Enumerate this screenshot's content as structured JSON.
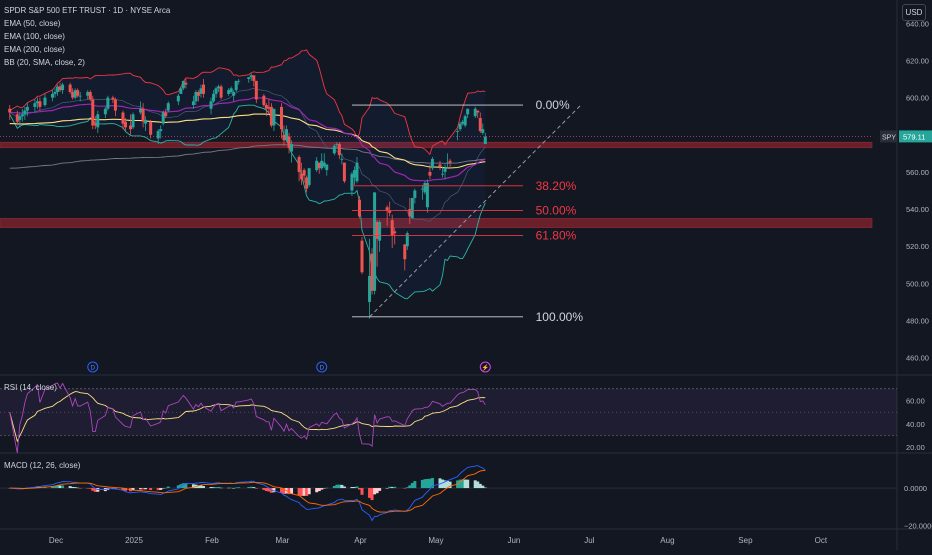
{
  "header": {
    "title": "SPDR S&P 500 ETF TRUST · 1D · NYSE Arca",
    "indicators": [
      "EMA (50, close)",
      "EMA (100, close)",
      "EMA (200, close)",
      "BB (20, SMA, close, 2)"
    ],
    "currency": "USD"
  },
  "price_axis": {
    "ticks": [
      "640.00",
      "620.00",
      "600.00",
      "580.00",
      "560.00",
      "540.00",
      "520.00",
      "500.00",
      "480.00",
      "460.00"
    ],
    "symbol": "SPY",
    "last_price": "579.11"
  },
  "fib_labels": [
    "0.00%",
    "38.20%",
    "50.00%",
    "61.80%",
    "100.00%"
  ],
  "event_markers": [
    "D",
    "D",
    "⚡"
  ],
  "rsi": {
    "label": "RSI (14, close)",
    "ticks": [
      "60.00",
      "40.00",
      "20.00"
    ]
  },
  "macd": {
    "label": "MACD (12, 26, close)",
    "ticks": [
      "0.0000",
      "−20.0000"
    ]
  },
  "time_axis": [
    "Dec",
    "2025",
    "Feb",
    "Mar",
    "Apr",
    "May",
    "Jun",
    "Jul",
    "Aug",
    "Sep",
    "Oct"
  ],
  "colors": {
    "up": "#26a69a",
    "down": "#ef5350",
    "bb": "#f23645",
    "ema50": "#9c27b0",
    "ema100": "#ffe082",
    "ema200": "#787b86",
    "fib": "#f23645",
    "bg": "#131722"
  },
  "chart_data": {
    "type": "candlestick",
    "symbol": "SPY",
    "interval": "1D",
    "ylim": [
      455,
      645
    ],
    "price_levels": [
      {
        "from": 573,
        "to": 576
      },
      {
        "from": 530,
        "to": 535
      }
    ],
    "fibonacci": [
      {
        "ratio": "0.00%",
        "price": 596
      },
      {
        "ratio": "38.20%",
        "price": 552.5
      },
      {
        "ratio": "50.00%",
        "price": 539.2
      },
      {
        "ratio": "61.80%",
        "price": 525.8
      },
      {
        "ratio": "100.00%",
        "price": 482
      }
    ],
    "trendline": {
      "from": {
        "date": "2025-04-07",
        "price": 482
      },
      "to": {
        "date": "2025-06-30",
        "price": 596
      }
    },
    "candles": [
      [
        "2024-11-15",
        594,
        596,
        588,
        592
      ],
      [
        "2024-11-18",
        591,
        593,
        585,
        587
      ],
      [
        "2024-11-19",
        588,
        592,
        584,
        590
      ],
      [
        "2024-11-20",
        590,
        594,
        587,
        591
      ],
      [
        "2024-11-21",
        591,
        595,
        588,
        593
      ],
      [
        "2024-11-22",
        593,
        597,
        590,
        595
      ],
      [
        "2024-11-25",
        595,
        599,
        592,
        597
      ],
      [
        "2024-11-26",
        597,
        600,
        594,
        598
      ],
      [
        "2024-11-27",
        598,
        600,
        593,
        595
      ],
      [
        "2024-11-29",
        596,
        602,
        595,
        600
      ],
      [
        "2024-12-02",
        600,
        604,
        598,
        602
      ],
      [
        "2024-12-03",
        602,
        605,
        600,
        603
      ],
      [
        "2024-12-04",
        603,
        607,
        601,
        606
      ],
      [
        "2024-12-05",
        606,
        608,
        603,
        604
      ],
      [
        "2024-12-06",
        604,
        608,
        602,
        607
      ],
      [
        "2024-12-09",
        607,
        608,
        602,
        603
      ],
      [
        "2024-12-10",
        603,
        605,
        599,
        600
      ],
      [
        "2024-12-11",
        600,
        605,
        599,
        604
      ],
      [
        "2024-12-12",
        604,
        605,
        600,
        601
      ],
      [
        "2024-12-13",
        601,
        603,
        598,
        601
      ],
      [
        "2024-12-16",
        601,
        604,
        599,
        603
      ],
      [
        "2024-12-17",
        603,
        604,
        598,
        599
      ],
      [
        "2024-12-18",
        599,
        601,
        583,
        585
      ],
      [
        "2024-12-19",
        586,
        590,
        583,
        585
      ],
      [
        "2024-12-20",
        584,
        593,
        581,
        591
      ],
      [
        "2024-12-23",
        591,
        595,
        589,
        594
      ],
      [
        "2024-12-24",
        594,
        601,
        593,
        600
      ],
      [
        "2024-12-26",
        600,
        601,
        597,
        599
      ],
      [
        "2024-12-27",
        599,
        600,
        590,
        593
      ],
      [
        "2024-12-30",
        592,
        593,
        583,
        586
      ],
      [
        "2024-12-31",
        587,
        589,
        582,
        584
      ],
      [
        "2025-01-02",
        585,
        591,
        580,
        583
      ],
      [
        "2025-01-03",
        584,
        592,
        583,
        591
      ],
      [
        "2025-01-06",
        592,
        598,
        591,
        594
      ],
      [
        "2025-01-07",
        594,
        597,
        584,
        587
      ],
      [
        "2025-01-08",
        586,
        590,
        582,
        588
      ],
      [
        "2025-01-10",
        587,
        588,
        578,
        580
      ],
      [
        "2025-01-13",
        578,
        583,
        575,
        582
      ],
      [
        "2025-01-14",
        582,
        585,
        578,
        583
      ],
      [
        "2025-01-15",
        586,
        593,
        585,
        592
      ],
      [
        "2025-01-16",
        592,
        594,
        589,
        590
      ],
      [
        "2025-01-17",
        593,
        598,
        592,
        597
      ],
      [
        "2025-01-21",
        598,
        602,
        596,
        601
      ],
      [
        "2025-01-22",
        602,
        606,
        602,
        605
      ],
      [
        "2025-01-23",
        605,
        609,
        604,
        609
      ],
      [
        "2025-01-24",
        608,
        610,
        605,
        607
      ],
      [
        "2025-01-27",
        596,
        601,
        594,
        598
      ],
      [
        "2025-01-28",
        598,
        604,
        596,
        603
      ],
      [
        "2025-01-29",
        603,
        604,
        598,
        601
      ],
      [
        "2025-01-30",
        602,
        607,
        600,
        605
      ],
      [
        "2025-01-31",
        607,
        610,
        600,
        602
      ],
      [
        "2025-02-03",
        594,
        600,
        591,
        598
      ],
      [
        "2025-02-04",
        598,
        604,
        597,
        602
      ],
      [
        "2025-02-05",
        602,
        606,
        600,
        605
      ],
      [
        "2025-02-06",
        605,
        607,
        603,
        606
      ],
      [
        "2025-02-07",
        606,
        607,
        599,
        600
      ],
      [
        "2025-02-10",
        602,
        605,
        601,
        604
      ],
      [
        "2025-02-11",
        603,
        606,
        602,
        605
      ],
      [
        "2025-02-12",
        601,
        604,
        598,
        603
      ],
      [
        "2025-02-13",
        604,
        609,
        603,
        609
      ],
      [
        "2025-02-14",
        609,
        610,
        607,
        609
      ],
      [
        "2025-02-18",
        610,
        611,
        608,
        611
      ],
      [
        "2025-02-19",
        611,
        613,
        609,
        612
      ],
      [
        "2025-02-20",
        612,
        612,
        606,
        609
      ],
      [
        "2025-02-21",
        609,
        609,
        597,
        599
      ],
      [
        "2025-02-24",
        601,
        602,
        595,
        596
      ],
      [
        "2025-02-25",
        596,
        597,
        590,
        594
      ],
      [
        "2025-02-26",
        595,
        599,
        591,
        594
      ],
      [
        "2025-02-27",
        595,
        597,
        584,
        585
      ],
      [
        "2025-02-28",
        585,
        594,
        582,
        594
      ],
      [
        "2025-03-03",
        595,
        597,
        578,
        583
      ],
      [
        "2025-03-04",
        580,
        585,
        574,
        577
      ],
      [
        "2025-03-05",
        577,
        585,
        576,
        583
      ],
      [
        "2025-03-06",
        579,
        581,
        570,
        573
      ],
      [
        "2025-03-07",
        571,
        577,
        565,
        575
      ],
      [
        "2025-03-10",
        568,
        569,
        555,
        560
      ],
      [
        "2025-03-11",
        559,
        565,
        553,
        556
      ],
      [
        "2025-03-12",
        561,
        562,
        554,
        558
      ],
      [
        "2025-03-13",
        557,
        558,
        549,
        551
      ],
      [
        "2025-03-14",
        553,
        562,
        552,
        562
      ],
      [
        "2025-03-17",
        561,
        568,
        560,
        566
      ],
      [
        "2025-03-18",
        565,
        565,
        559,
        562
      ],
      [
        "2025-03-19",
        562,
        570,
        561,
        566
      ],
      [
        "2025-03-20",
        563,
        570,
        562,
        565
      ],
      [
        "2025-03-21",
        561,
        564,
        558,
        564
      ],
      [
        "2025-03-24",
        570,
        575,
        569,
        574
      ],
      [
        "2025-03-25",
        575,
        576,
        573,
        575
      ],
      [
        "2025-03-26",
        575,
        576,
        567,
        569
      ],
      [
        "2025-03-27",
        567,
        570,
        564,
        567
      ],
      [
        "2025-03-28",
        565,
        565,
        554,
        555
      ],
      [
        "2025-03-31",
        550,
        560,
        547,
        559
      ],
      [
        "2025-04-01",
        557,
        563,
        553,
        561
      ],
      [
        "2025-04-02",
        555,
        568,
        554,
        565
      ],
      [
        "2025-04-03",
        545,
        547,
        535,
        536
      ],
      [
        "2025-04-04",
        523,
        525,
        505,
        506
      ],
      [
        "2025-04-07",
        490,
        524,
        481,
        504
      ],
      [
        "2025-04-08",
        516,
        519,
        494,
        496
      ],
      [
        "2025-04-09",
        496,
        549,
        494,
        549
      ],
      [
        "2025-04-10",
        533,
        534,
        509,
        524
      ],
      [
        "2025-04-11",
        523,
        534,
        517,
        533
      ],
      [
        "2025-04-14",
        541,
        542,
        531,
        539
      ],
      [
        "2025-04-15",
        539,
        544,
        536,
        538
      ],
      [
        "2025-04-16",
        534,
        537,
        519,
        526
      ],
      [
        "2025-04-17",
        528,
        530,
        521,
        527
      ],
      [
        "2025-04-21",
        521,
        521,
        507,
        513
      ],
      [
        "2025-04-22",
        520,
        528,
        518,
        527
      ],
      [
        "2025-04-23",
        540,
        546,
        532,
        536
      ],
      [
        "2025-04-24",
        535,
        546,
        535,
        546
      ],
      [
        "2025-04-25",
        546,
        551,
        543,
        550
      ],
      [
        "2025-04-28",
        551,
        553,
        545,
        551
      ],
      [
        "2025-04-29",
        549,
        555,
        548,
        554
      ],
      [
        "2025-04-30",
        541,
        556,
        538,
        554
      ],
      [
        "2025-05-01",
        560,
        564,
        556,
        558
      ],
      [
        "2025-05-02",
        562,
        568,
        561,
        567
      ],
      [
        "2025-05-05",
        564,
        566,
        561,
        563
      ],
      [
        "2025-05-06",
        559,
        563,
        557,
        559
      ],
      [
        "2025-05-07",
        560,
        564,
        556,
        562
      ],
      [
        "2025-05-08",
        565,
        570,
        562,
        565
      ],
      [
        "2025-05-09",
        566,
        567,
        562,
        565
      ],
      [
        "2025-05-12",
        582,
        583,
        577,
        582
      ],
      [
        "2025-05-13",
        583,
        587,
        582,
        586
      ],
      [
        "2025-05-14",
        586,
        588,
        585,
        587
      ],
      [
        "2025-05-15",
        585,
        591,
        584,
        590
      ],
      [
        "2025-05-16",
        591,
        594,
        589,
        594
      ],
      [
        "2025-05-19",
        590,
        595,
        589,
        594
      ],
      [
        "2025-05-20",
        593,
        593,
        589,
        592
      ],
      [
        "2025-05-21",
        589,
        592,
        581,
        582
      ],
      [
        "2025-05-22",
        581,
        586,
        580,
        583
      ],
      [
        "2025-05-23",
        575,
        581,
        575,
        579
      ]
    ],
    "rsi_range": [
      15,
      75
    ],
    "macd_range": [
      -22,
      14
    ]
  }
}
